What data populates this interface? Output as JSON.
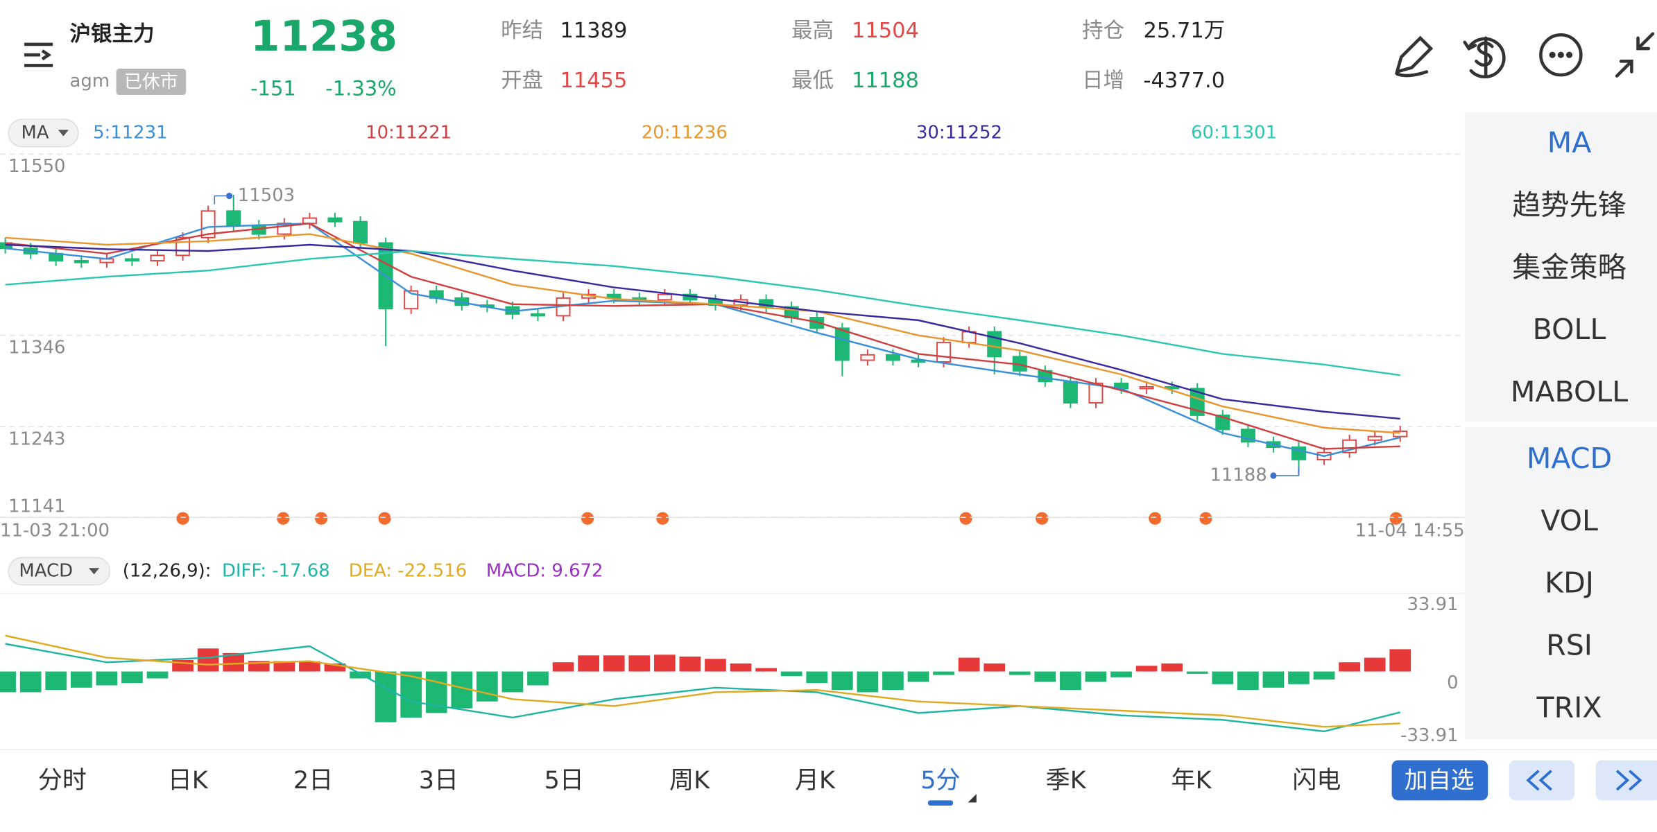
{
  "header": {
    "symbol": "沪银主力",
    "code": "agm",
    "status": "已休市",
    "price": "11238",
    "change": "-151",
    "change_pct": "-1.33%",
    "stats": [
      {
        "label": "昨结",
        "value": "11389"
      },
      {
        "label": "开盘",
        "value": "11455"
      },
      {
        "label": "最高",
        "value": "11504"
      },
      {
        "label": "最低",
        "value": "11188"
      },
      {
        "label": "持仓",
        "value": "25.71万"
      },
      {
        "label": "日增",
        "value": "-4377.0"
      }
    ]
  },
  "indicator_menu": {
    "main": [
      "MA",
      "趋势先锋",
      "集金策略",
      "BOLL",
      "MABOLL"
    ],
    "sub": [
      "MACD",
      "VOL",
      "KDJ",
      "RSI",
      "TRIX"
    ]
  },
  "tabs": {
    "items": [
      "分时",
      "日K",
      "2日",
      "3日",
      "5日",
      "周K",
      "月K",
      "5分",
      "季K",
      "年K",
      "闪电"
    ],
    "active": "5分",
    "add_button": "加自选"
  },
  "chart_data": [
    {
      "type": "candlestick",
      "title": "MA",
      "up_color": "#e04848",
      "down_color": "#1cb772",
      "ylim": [
        11141,
        11550
      ],
      "yticks": [
        11550,
        11346,
        11243,
        11141
      ],
      "grid": true,
      "x_labels": [
        "11-03 21:00",
        "11-04 14:55"
      ],
      "high_label": 11503,
      "low_label": 11188,
      "open": [
        11450,
        11444,
        11438,
        11430,
        11428,
        11432,
        11430,
        11436,
        11456,
        11486,
        11470,
        11460,
        11472,
        11478,
        11474,
        11450,
        11376,
        11396,
        11388,
        11380,
        11378,
        11370,
        11368,
        11388,
        11392,
        11388,
        11386,
        11392,
        11386,
        11380,
        11386,
        11378,
        11366,
        11354,
        11318,
        11324,
        11318,
        11316,
        11338,
        11350,
        11322,
        11306,
        11294,
        11270,
        11292,
        11286,
        11288,
        11286,
        11256,
        11240,
        11226,
        11220,
        11206,
        11214,
        11228,
        11232
      ],
      "high": [
        11456,
        11450,
        11444,
        11436,
        11438,
        11438,
        11442,
        11462,
        11492,
        11503,
        11476,
        11478,
        11484,
        11484,
        11480,
        11456,
        11402,
        11402,
        11394,
        11386,
        11384,
        11376,
        11394,
        11398,
        11398,
        11394,
        11398,
        11398,
        11392,
        11392,
        11392,
        11384,
        11372,
        11360,
        11330,
        11330,
        11324,
        11344,
        11356,
        11356,
        11328,
        11312,
        11300,
        11298,
        11298,
        11294,
        11294,
        11292,
        11262,
        11246,
        11232,
        11226,
        11220,
        11234,
        11238,
        11244
      ],
      "low": [
        11438,
        11432,
        11424,
        11422,
        11422,
        11424,
        11424,
        11430,
        11450,
        11464,
        11454,
        11454,
        11466,
        11468,
        11444,
        11334,
        11370,
        11382,
        11374,
        11372,
        11364,
        11362,
        11362,
        11382,
        11382,
        11380,
        11380,
        11380,
        11374,
        11374,
        11372,
        11360,
        11348,
        11300,
        11312,
        11312,
        11310,
        11310,
        11332,
        11302,
        11300,
        11288,
        11264,
        11264,
        11280,
        11280,
        11280,
        11250,
        11234,
        11220,
        11214,
        11188,
        11200,
        11208,
        11222,
        11226
      ],
      "close": [
        11444,
        11438,
        11430,
        11428,
        11432,
        11430,
        11436,
        11456,
        11486,
        11470,
        11460,
        11472,
        11478,
        11474,
        11450,
        11376,
        11396,
        11388,
        11380,
        11378,
        11370,
        11368,
        11388,
        11392,
        11388,
        11386,
        11392,
        11386,
        11380,
        11386,
        11378,
        11366,
        11354,
        11318,
        11324,
        11318,
        11316,
        11338,
        11350,
        11322,
        11306,
        11294,
        11270,
        11292,
        11286,
        11288,
        11286,
        11256,
        11240,
        11226,
        11220,
        11206,
        11214,
        11228,
        11232,
        11238
      ],
      "line_x": [
        0,
        4,
        8,
        12,
        16,
        20,
        24,
        28,
        32,
        36,
        40,
        44,
        48,
        52,
        55
      ],
      "series": [
        {
          "name": "5:11231",
          "color": "#3b8fd9",
          "values": [
            11444,
            11432,
            11468,
            11472,
            11393,
            11373,
            11385,
            11381,
            11349,
            11319,
            11302,
            11286,
            11236,
            11210,
            11231
          ]
        },
        {
          "name": "10:11221",
          "color": "#cf4040",
          "values": [
            11450,
            11438,
            11460,
            11472,
            11412,
            11381,
            11379,
            11381,
            11361,
            11325,
            11313,
            11284,
            11254,
            11218,
            11221
          ]
        },
        {
          "name": "20:11236",
          "color": "#e8962e",
          "values": [
            11456,
            11448,
            11452,
            11460,
            11438,
            11403,
            11387,
            11381,
            11373,
            11346,
            11329,
            11302,
            11266,
            11242,
            11236
          ]
        },
        {
          "name": "30:11252",
          "color": "#3a2aa0",
          "values": [
            11448,
            11443,
            11441,
            11448,
            11441,
            11419,
            11400,
            11387,
            11373,
            11363,
            11337,
            11307,
            11274,
            11260,
            11252
          ]
        },
        {
          "name": "60:11301",
          "color": "#2cc6b5",
          "values": [
            11403,
            11412,
            11419,
            11432,
            11441,
            11432,
            11424,
            11412,
            11397,
            11379,
            11363,
            11346,
            11325,
            11313,
            11301
          ]
        }
      ]
    },
    {
      "type": "macd",
      "title": "MACD",
      "subtitle": "(12,26,9):",
      "ylim": [
        -33.91,
        33.91
      ],
      "yticks": [
        33.91,
        0,
        -33.91
      ],
      "grid": false,
      "histogram": {
        "name": "MACD: 9.672",
        "color": "#9a2fc0",
        "up_color": "#e8393a",
        "down_color": "#1cb772",
        "values": [
          -9,
          -9,
          -8,
          -7,
          -6,
          -5,
          -3,
          5,
          10,
          8,
          4.6,
          4.5,
          4.4,
          3.5,
          -3,
          -22,
          -20,
          -18,
          -16,
          -13,
          -9,
          -6,
          4,
          7,
          7,
          7,
          7.3,
          6.5,
          5.5,
          3.5,
          1.5,
          -2,
          -5,
          -8,
          -9,
          -8,
          -4.5,
          -1.5,
          6,
          3.5,
          -1.5,
          -4.5,
          -8,
          -4.5,
          -2.5,
          2.5,
          3.5,
          -1,
          -5.5,
          -8,
          -7,
          -5.5,
          -3.5,
          4,
          6,
          9.672
        ]
      },
      "line_x": [
        0,
        4,
        8,
        12,
        16,
        20,
        24,
        28,
        32,
        36,
        40,
        44,
        48,
        52,
        55
      ],
      "series": [
        {
          "name": "DIFF: -17.68",
          "color": "#1fb5a5",
          "values": [
            12,
            4,
            6,
            11,
            -13,
            -20,
            -12,
            -7,
            -9,
            -18,
            -15,
            -19,
            -21,
            -26,
            -17.68
          ]
        },
        {
          "name": "DEA: -22.516",
          "color": "#e0aa20",
          "values": [
            15.6,
            6,
            3,
            4.5,
            -2,
            -12,
            -15,
            -9,
            -8,
            -13,
            -15,
            -17,
            -19,
            -24,
            -22.516
          ]
        }
      ]
    }
  ]
}
